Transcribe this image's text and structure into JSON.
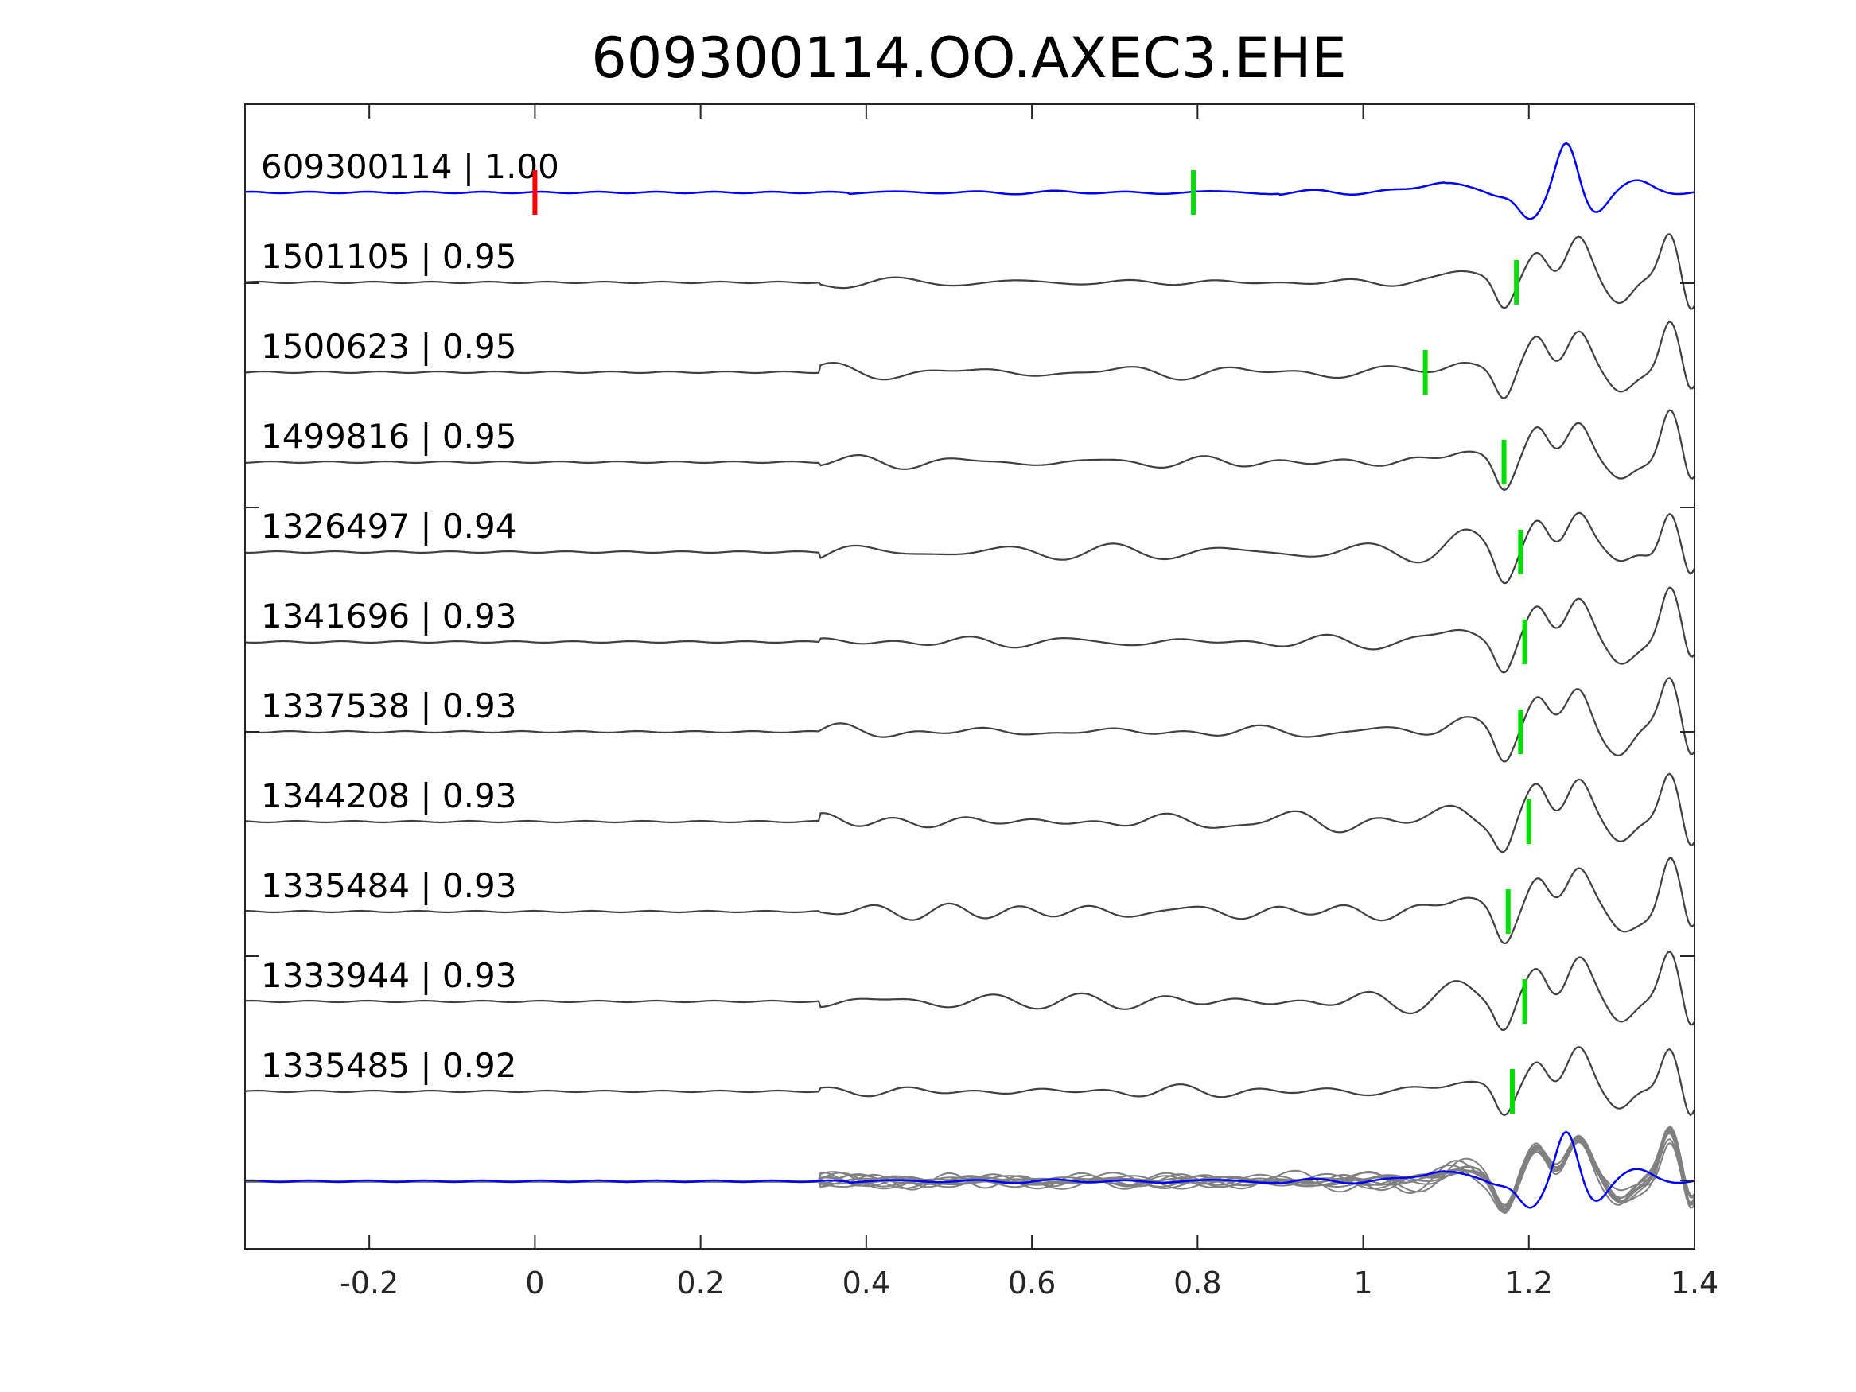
{
  "chart_data": {
    "type": "line",
    "title": "609300114.OO.AXEC3.EHE",
    "xlabel": "",
    "ylabel": "",
    "xlim": [
      -0.35,
      1.4
    ],
    "xticks": [
      -0.2,
      0,
      0.2,
      0.4,
      0.6,
      0.8,
      1,
      1.2,
      1.4
    ],
    "xtick_labels": [
      "-0.2",
      "0",
      "0.2",
      "0.4",
      "0.6",
      "0.8",
      "1",
      "1.2",
      "1.4"
    ],
    "grid": false,
    "colors": {
      "template": "#0000ff",
      "matches": "#404040",
      "overlay_matches": "#808080",
      "pick_red": "#ff0000",
      "pick_green": "#00dd00",
      "axes": "#262626"
    },
    "traces": [
      {
        "id": "609300114",
        "cc": "1.00",
        "label": "609300114 | 1.00",
        "template": true,
        "pick_red": 0.0,
        "pick": 0.795,
        "onset": 0.38
      },
      {
        "id": "1501105",
        "cc": "0.95",
        "label": "1501105 | 0.95",
        "pick": 1.185,
        "onset": 0.345
      },
      {
        "id": "1500623",
        "cc": "0.95",
        "label": "1500623 | 0.95",
        "pick": 1.075,
        "onset": 0.345
      },
      {
        "id": "1499816",
        "cc": "0.95",
        "label": "1499816 | 0.95",
        "pick": 1.17,
        "onset": 0.345
      },
      {
        "id": "1326497",
        "cc": "0.94",
        "label": "1326497 | 0.94",
        "pick": 1.19,
        "onset": 0.345
      },
      {
        "id": "1341696",
        "cc": "0.93",
        "label": "1341696 | 0.93",
        "pick": 1.195,
        "onset": 0.345
      },
      {
        "id": "1337538",
        "cc": "0.93",
        "label": "1337538 | 0.93",
        "pick": 1.19,
        "onset": 0.345
      },
      {
        "id": "1344208",
        "cc": "0.93",
        "label": "1344208 | 0.93",
        "pick": 1.2,
        "onset": 0.345
      },
      {
        "id": "1335484",
        "cc": "0.93",
        "label": "1335484 | 0.93",
        "pick": 1.175,
        "onset": 0.345
      },
      {
        "id": "1333944",
        "cc": "0.93",
        "label": "1333944 | 0.93",
        "pick": 1.195,
        "onset": 0.345
      },
      {
        "id": "1335485",
        "cc": "0.92",
        "label": "1335485 | 0.92",
        "pick": 1.18,
        "onset": 0.345
      }
    ],
    "overlay": {
      "description": "all matched traces overlaid with template at bottom"
    }
  }
}
